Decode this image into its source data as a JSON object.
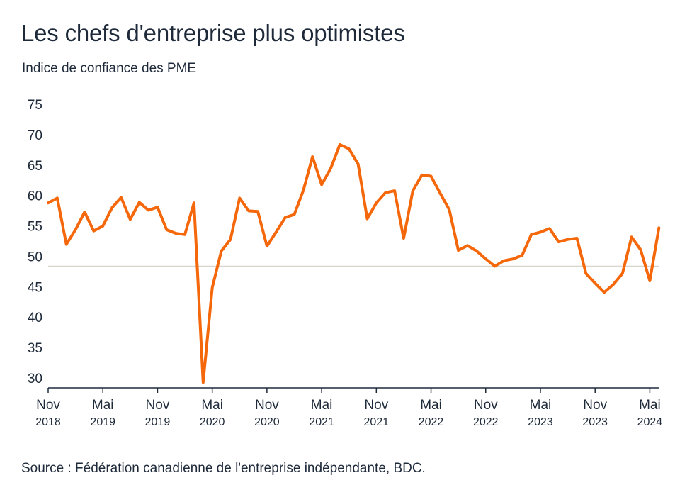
{
  "title": "Les chefs d'entreprise plus optimistes",
  "subtitle": "Indice de confiance des PME",
  "source": "Source : Fédération canadienne de l'entreprise indépendante, BDC.",
  "colors": {
    "line": "#f4670a",
    "axis": "#1e2a3a",
    "reference_line": "#d9d4cc"
  },
  "chart_data": {
    "type": "line",
    "title": "Les chefs d'entreprise plus optimistes",
    "ylabel": "Indice de confiance des PME",
    "ylim": [
      30,
      75
    ],
    "yticks": [
      30,
      35,
      40,
      45,
      50,
      55,
      60,
      65,
      70,
      75
    ],
    "reference_line": 50,
    "grid": false,
    "x_start": "2018-11",
    "x_end": "2024-06",
    "xtick_labels": [
      {
        "month": "Nov",
        "year": "2018",
        "date": "2018-11"
      },
      {
        "month": "Mai",
        "year": "2019",
        "date": "2019-05"
      },
      {
        "month": "Nov",
        "year": "2019",
        "date": "2019-11"
      },
      {
        "month": "Mai",
        "year": "2020",
        "date": "2020-05"
      },
      {
        "month": "Nov",
        "year": "2020",
        "date": "2020-11"
      },
      {
        "month": "Mai",
        "year": "2021",
        "date": "2021-05"
      },
      {
        "month": "Nov",
        "year": "2021",
        "date": "2021-11"
      },
      {
        "month": "Mai",
        "year": "2022",
        "date": "2022-05"
      },
      {
        "month": "Nov",
        "year": "2022",
        "date": "2022-11"
      },
      {
        "month": "Mai",
        "year": "2023",
        "date": "2023-05"
      },
      {
        "month": "Nov",
        "year": "2023",
        "date": "2023-11"
      },
      {
        "month": "Mai",
        "year": "2024",
        "date": "2024-05"
      }
    ],
    "x": [
      "2018-11",
      "2018-12",
      "2019-01",
      "2019-02",
      "2019-03",
      "2019-04",
      "2019-05",
      "2019-06",
      "2019-07",
      "2019-08",
      "2019-09",
      "2019-10",
      "2019-11",
      "2019-12",
      "2020-01",
      "2020-02",
      "2020-03",
      "2020-04",
      "2020-05",
      "2020-06",
      "2020-07",
      "2020-08",
      "2020-09",
      "2020-10",
      "2020-11",
      "2020-12",
      "2021-01",
      "2021-02",
      "2021-03",
      "2021-04",
      "2021-05",
      "2021-06",
      "2021-07",
      "2021-08",
      "2021-09",
      "2021-10",
      "2021-11",
      "2021-12",
      "2022-01",
      "2022-02",
      "2022-03",
      "2022-04",
      "2022-05",
      "2022-06",
      "2022-07",
      "2022-08",
      "2022-09",
      "2022-10",
      "2022-11",
      "2022-12",
      "2023-01",
      "2023-02",
      "2023-03",
      "2023-04",
      "2023-05",
      "2023-06",
      "2023-07",
      "2023-08",
      "2023-09",
      "2023-10",
      "2023-11",
      "2023-12",
      "2024-01",
      "2024-02",
      "2024-03",
      "2024-04",
      "2024-05",
      "2024-06"
    ],
    "series": [
      {
        "values": [
          60.4,
          61.2,
          53.6,
          56.0,
          58.9,
          55.8,
          56.6,
          59.6,
          61.3,
          57.7,
          60.5,
          59.2,
          59.7,
          56.0,
          55.4,
          55.2,
          60.4,
          30.9,
          46.5,
          52.5,
          54.4,
          61.2,
          59.1,
          59.0,
          53.3,
          55.6,
          58.0,
          58.5,
          62.5,
          68.0,
          63.4,
          66.1,
          70.0,
          69.3,
          66.8,
          57.8,
          60.4,
          62.1,
          62.4,
          54.6,
          62.4,
          65.0,
          64.8,
          62.0,
          59.3,
          52.6,
          53.4,
          52.5,
          51.2,
          50.0,
          50.9,
          51.2,
          51.8,
          55.2,
          55.6,
          56.2,
          54.0,
          54.4,
          54.6,
          48.8,
          47.2,
          45.7,
          47.0,
          48.8,
          54.8,
          52.7,
          47.6,
          56.3
        ]
      }
    ]
  }
}
